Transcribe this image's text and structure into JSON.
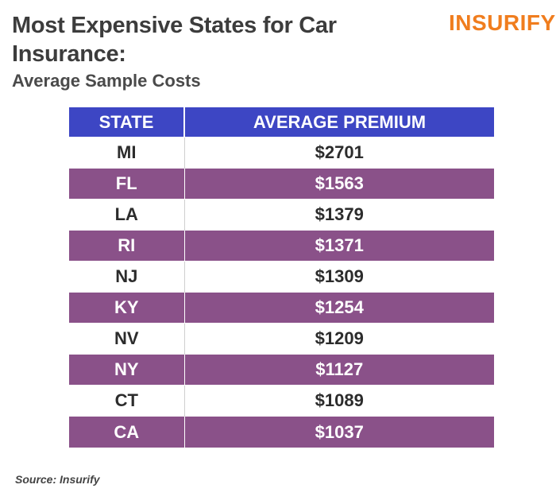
{
  "header": {
    "title": "Most Expensive States for Car Insurance:",
    "subtitle": "Average Sample Costs",
    "logo_text": "INSURIFY"
  },
  "chart_data": {
    "type": "table",
    "title": "Most Expensive States for Car Insurance:",
    "subtitle": "Average Sample Costs",
    "columns": [
      "STATE",
      "AVERAGE PREMIUM"
    ],
    "rows": [
      {
        "state": "MI",
        "premium": "$2701"
      },
      {
        "state": "FL",
        "premium": "$1563"
      },
      {
        "state": "LA",
        "premium": "$1379"
      },
      {
        "state": "RI",
        "premium": "$1371"
      },
      {
        "state": "NJ",
        "premium": "$1309"
      },
      {
        "state": "KY",
        "premium": "$1254"
      },
      {
        "state": "NV",
        "premium": "$1209"
      },
      {
        "state": "NY",
        "premium": "$1127"
      },
      {
        "state": "CT",
        "premium": "$1089"
      },
      {
        "state": "CA",
        "premium": "$1037"
      }
    ]
  },
  "footer": {
    "source": "Source: Insurify"
  },
  "colors": {
    "header_bg": "#3d46c4",
    "shaded_row_bg": "#8a5189",
    "logo": "#f07d1e",
    "title_text": "#3c3c3c"
  }
}
